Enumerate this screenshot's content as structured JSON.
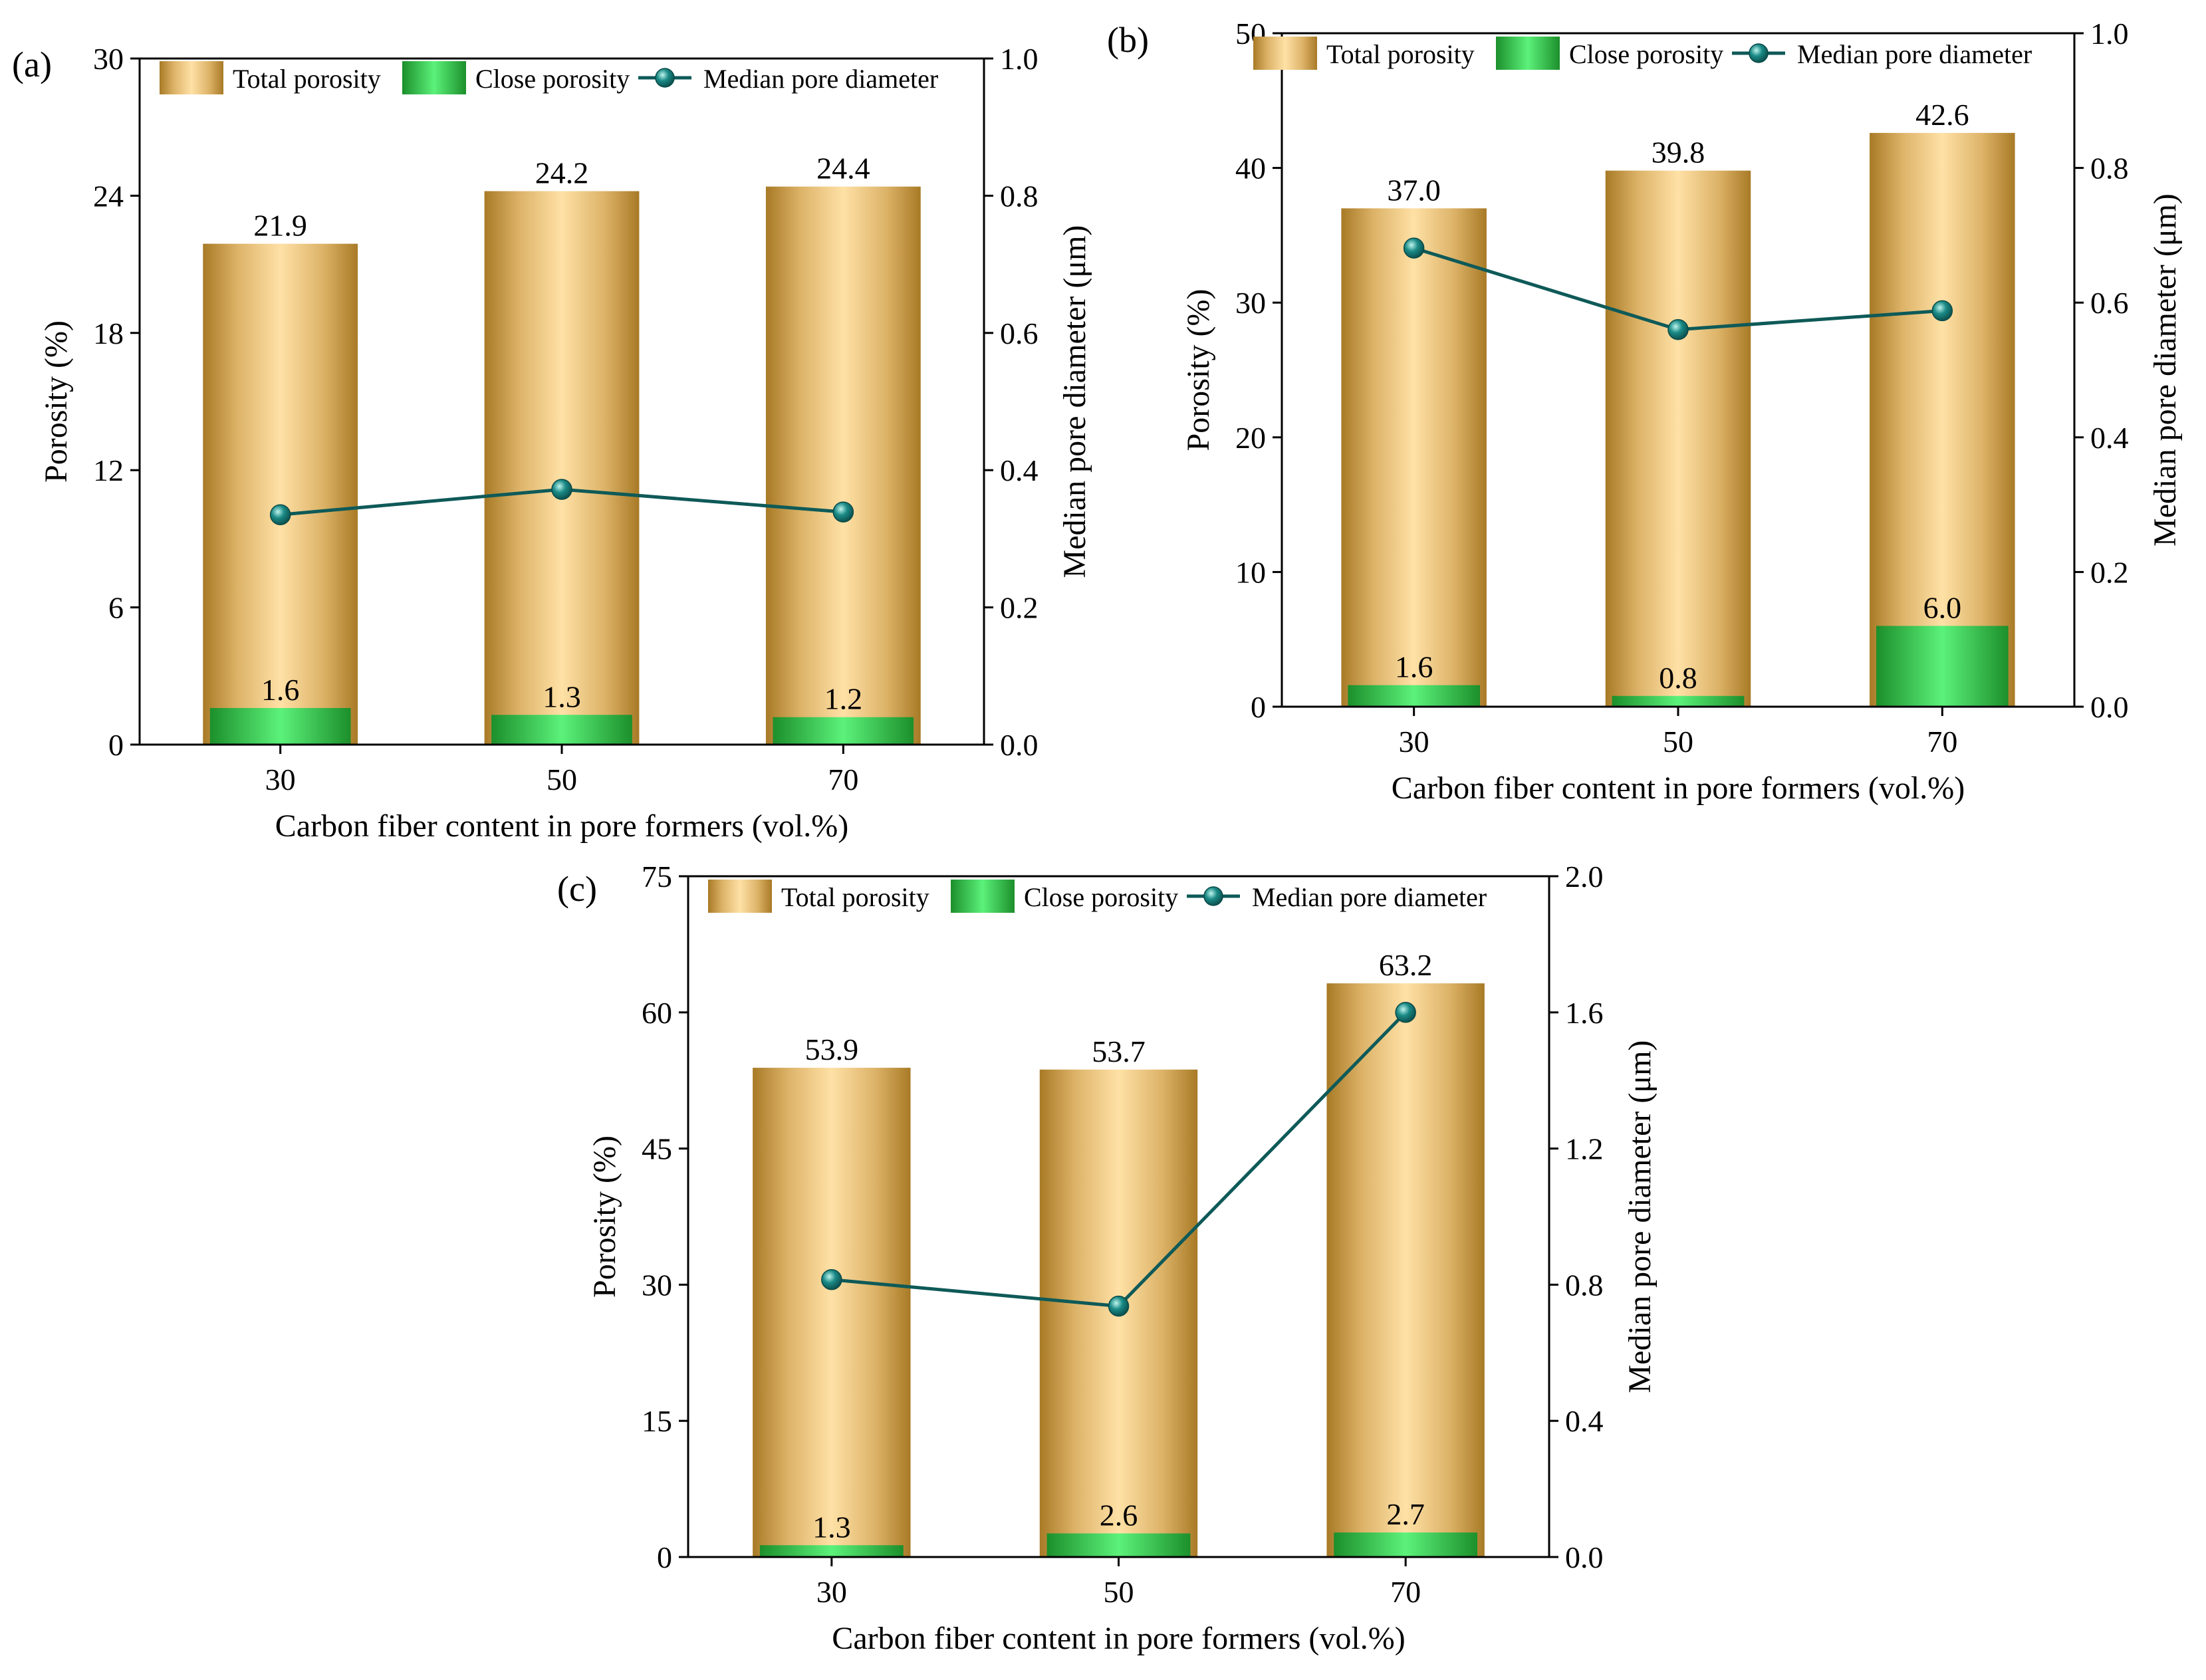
{
  "chart_data": [
    {
      "panel_label": "(a)",
      "type": "bar",
      "categories": [
        "30",
        "50",
        "70"
      ],
      "xlabel": "Carbon fiber content in pore formers (vol.%)",
      "ylabel": "Porosity (%)",
      "y2label": "Median pore diameter (μm)",
      "ylim": [
        0,
        30
      ],
      "yticks": [
        0,
        6,
        12,
        18,
        24,
        30
      ],
      "y2lim": [
        0,
        1.0
      ],
      "y2ticks": [
        "0.0",
        "0.2",
        "0.4",
        "0.6",
        "0.8",
        "1.0"
      ],
      "series": [
        {
          "name": "Total porosity",
          "values": [
            21.9,
            24.2,
            24.4
          ],
          "labels": [
            "21.9",
            "24.2",
            "24.4"
          ]
        },
        {
          "name": "Close porosity",
          "values": [
            1.6,
            1.3,
            1.2
          ],
          "labels": [
            "1.6",
            "1.3",
            "1.2"
          ]
        },
        {
          "name": "Median pore diameter",
          "values": [
            0.335,
            0.372,
            0.339
          ],
          "axis": "right"
        }
      ],
      "legend_position": "top"
    },
    {
      "panel_label": "(b)",
      "type": "bar",
      "categories": [
        "30",
        "50",
        "70"
      ],
      "xlabel": "Carbon fiber content in pore formers (vol.%)",
      "ylabel": "Porosity (%)",
      "y2label": "Median pore diameter (μm)",
      "ylim": [
        0,
        50
      ],
      "yticks": [
        0,
        10,
        20,
        30,
        40,
        50
      ],
      "y2lim": [
        0,
        1.0
      ],
      "y2ticks": [
        "0.0",
        "0.2",
        "0.4",
        "0.6",
        "0.8",
        "1.0"
      ],
      "series": [
        {
          "name": "Total porosity",
          "values": [
            37.0,
            39.8,
            42.6
          ],
          "labels": [
            "37.0",
            "39.8",
            "42.6"
          ]
        },
        {
          "name": "Close porosity",
          "values": [
            1.6,
            0.8,
            6.0
          ],
          "labels": [
            "1.6",
            "0.8",
            "6.0"
          ]
        },
        {
          "name": "Median pore diameter",
          "values": [
            0.681,
            0.56,
            0.588
          ],
          "axis": "right"
        }
      ],
      "legend_position": "top"
    },
    {
      "panel_label": "(c)",
      "type": "bar",
      "categories": [
        "30",
        "50",
        "70"
      ],
      "xlabel": "Carbon fiber content in pore formers (vol.%)",
      "ylabel": "Porosity (%)",
      "y2label": "Median pore diameter (μm)",
      "ylim": [
        0,
        75
      ],
      "yticks": [
        0,
        15,
        30,
        45,
        60,
        75
      ],
      "y2lim": [
        0,
        2.0
      ],
      "y2ticks": [
        "0.0",
        "0.4",
        "0.8",
        "1.2",
        "1.6",
        "2.0"
      ],
      "series": [
        {
          "name": "Total porosity",
          "values": [
            53.9,
            53.7,
            63.2
          ],
          "labels": [
            "53.9",
            "53.7",
            "63.2"
          ]
        },
        {
          "name": "Close porosity",
          "values": [
            1.3,
            2.6,
            2.7
          ],
          "labels": [
            "1.3",
            "2.6",
            "2.7"
          ]
        },
        {
          "name": "Median pore diameter",
          "values": [
            0.815,
            0.737,
            1.6
          ],
          "axis": "right"
        }
      ],
      "legend_position": "top"
    }
  ],
  "colors": {
    "total_bar_dark": "#a87a26",
    "total_bar_light": "#ffe0a3",
    "close_bar_dark": "#1e9a2e",
    "close_bar_light": "#5cf27a",
    "line": "#0e5a58",
    "marker": "#1a8a86"
  }
}
